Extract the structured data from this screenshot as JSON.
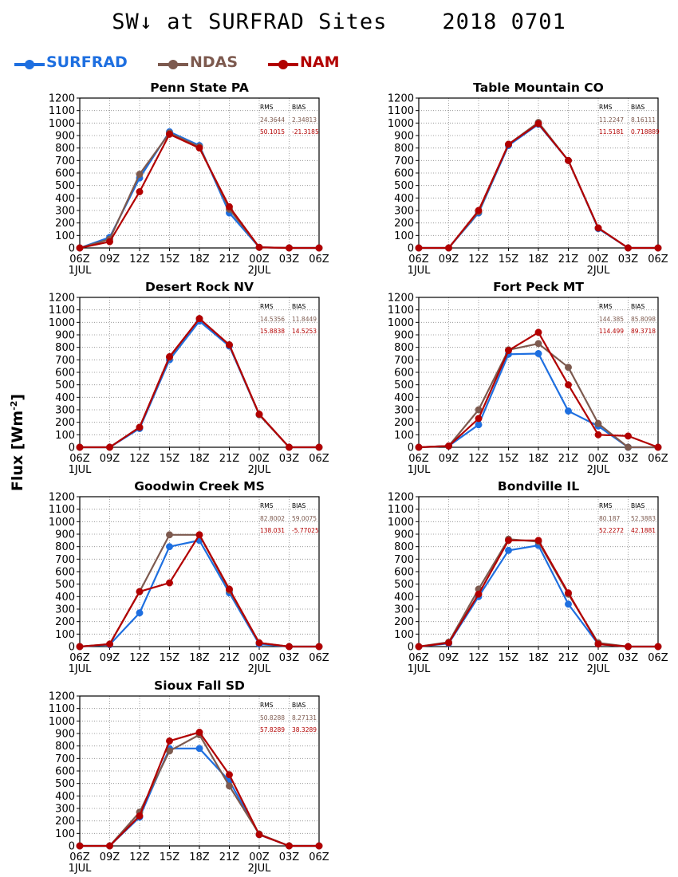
{
  "figure": {
    "title": "SW↓ at SURFRAD Sites    2018 0701",
    "ylabel": "Flux [Wm",
    "ylabel_sup": "-2",
    "ylabel_close": "]",
    "legend": [
      {
        "name": "SURFRAD",
        "color": "#1e6fe0"
      },
      {
        "name": "NDAS",
        "color": "#7d5a4f"
      },
      {
        "name": "NAM",
        "color": "#b20000"
      }
    ],
    "stats_header": {
      "rms": "RMS",
      "bias": "BIAS"
    }
  },
  "chart_data": [
    {
      "type": "line",
      "title": "Penn State PA",
      "x": [
        "06Z",
        "09Z",
        "12Z",
        "15Z",
        "18Z",
        "21Z",
        "00Z",
        "03Z",
        "06Z"
      ],
      "date_labels": {
        "0": "1JUL",
        "6": "2JUL"
      },
      "ylim": [
        0,
        1200
      ],
      "yticks": [
        0,
        100,
        200,
        300,
        400,
        500,
        600,
        700,
        800,
        900,
        1000,
        1100,
        1200
      ],
      "grid": true,
      "series": [
        {
          "name": "SURFRAD",
          "values": [
            0,
            85,
            560,
            930,
            820,
            280,
            5,
            0,
            0
          ]
        },
        {
          "name": "NDAS",
          "values": [
            0,
            70,
            590,
            920,
            810,
            310,
            5,
            0,
            0
          ]
        },
        {
          "name": "NAM",
          "values": [
            0,
            50,
            450,
            910,
            800,
            330,
            5,
            0,
            0
          ]
        }
      ],
      "stats": {
        "ndas": [
          "24.3644",
          "2.34813"
        ],
        "nam": [
          "50.1015",
          "-21.3185"
        ]
      }
    },
    {
      "type": "line",
      "title": "Table Mountain CO",
      "x": [
        "06Z",
        "09Z",
        "12Z",
        "15Z",
        "18Z",
        "21Z",
        "00Z",
        "03Z",
        "06Z"
      ],
      "date_labels": {
        "0": "1JUL",
        "6": "2JUL"
      },
      "ylim": [
        0,
        1200
      ],
      "yticks": [
        0,
        100,
        200,
        300,
        400,
        500,
        600,
        700,
        800,
        900,
        1000,
        1100,
        1200
      ],
      "grid": true,
      "series": [
        {
          "name": "SURFRAD",
          "values": [
            0,
            0,
            280,
            820,
            990,
            700,
            155,
            0,
            0
          ]
        },
        {
          "name": "NDAS",
          "values": [
            0,
            0,
            290,
            830,
            1005,
            700,
            160,
            0,
            0
          ]
        },
        {
          "name": "NAM",
          "values": [
            0,
            0,
            300,
            830,
            995,
            700,
            160,
            0,
            0
          ]
        }
      ],
      "stats": {
        "ndas": [
          "11.2247",
          "8.16111"
        ],
        "nam": [
          "11.5181",
          "0.718889"
        ]
      }
    },
    {
      "type": "line",
      "title": "Desert Rock NV",
      "x": [
        "06Z",
        "09Z",
        "12Z",
        "15Z",
        "18Z",
        "21Z",
        "00Z",
        "03Z",
        "06Z"
      ],
      "date_labels": {
        "0": "1JUL",
        "6": "2JUL"
      },
      "ylim": [
        0,
        1200
      ],
      "yticks": [
        0,
        100,
        200,
        300,
        400,
        500,
        600,
        700,
        800,
        900,
        1000,
        1100,
        1200
      ],
      "grid": true,
      "series": [
        {
          "name": "SURFRAD",
          "values": [
            0,
            0,
            150,
            700,
            1010,
            810,
            260,
            0,
            0
          ]
        },
        {
          "name": "NDAS",
          "values": [
            0,
            0,
            160,
            720,
            1030,
            820,
            260,
            0,
            0
          ]
        },
        {
          "name": "NAM",
          "values": [
            0,
            0,
            160,
            725,
            1030,
            820,
            265,
            0,
            0
          ]
        }
      ],
      "stats": {
        "ndas": [
          "14.5356",
          "11.8449"
        ],
        "nam": [
          "15.8838",
          "14.5253"
        ]
      }
    },
    {
      "type": "line",
      "title": "Fort Peck MT",
      "x": [
        "06Z",
        "09Z",
        "12Z",
        "15Z",
        "18Z",
        "21Z",
        "00Z",
        "03Z",
        "06Z"
      ],
      "date_labels": {
        "0": "1JUL",
        "6": "2JUL"
      },
      "ylim": [
        0,
        1200
      ],
      "yticks": [
        0,
        100,
        200,
        300,
        400,
        500,
        600,
        700,
        800,
        900,
        1000,
        1100,
        1200
      ],
      "grid": true,
      "series": [
        {
          "name": "SURFRAD",
          "values": [
            0,
            10,
            180,
            745,
            750,
            290,
            170,
            0,
            0
          ]
        },
        {
          "name": "NDAS",
          "values": [
            0,
            10,
            300,
            780,
            830,
            640,
            190,
            0,
            0
          ]
        },
        {
          "name": "NAM",
          "values": [
            0,
            10,
            230,
            775,
            920,
            500,
            100,
            90,
            0
          ]
        }
      ],
      "stats": {
        "ndas": [
          "144.385",
          "85.8098"
        ],
        "nam": [
          "114.499",
          "89.3718"
        ]
      }
    },
    {
      "type": "line",
      "title": "Goodwin Creek MS",
      "x": [
        "06Z",
        "09Z",
        "12Z",
        "15Z",
        "18Z",
        "21Z",
        "00Z",
        "03Z",
        "06Z"
      ],
      "date_labels": {
        "0": "1JUL",
        "6": "2JUL"
      },
      "ylim": [
        0,
        1200
      ],
      "yticks": [
        0,
        100,
        200,
        300,
        400,
        500,
        600,
        700,
        800,
        900,
        1000,
        1100,
        1200
      ],
      "grid": true,
      "series": [
        {
          "name": "SURFRAD",
          "values": [
            0,
            15,
            270,
            800,
            850,
            430,
            20,
            0,
            0
          ]
        },
        {
          "name": "NDAS",
          "values": [
            0,
            20,
            440,
            895,
            895,
            450,
            30,
            0,
            0
          ]
        },
        {
          "name": "NAM",
          "values": [
            0,
            20,
            440,
            510,
            895,
            460,
            30,
            0,
            0
          ]
        }
      ],
      "stats": {
        "ndas": [
          "82.8002",
          "59.0075"
        ],
        "nam": [
          "138.031",
          "-5.77025"
        ]
      }
    },
    {
      "type": "line",
      "title": "Bondville IL",
      "x": [
        "06Z",
        "09Z",
        "12Z",
        "15Z",
        "18Z",
        "21Z",
        "00Z",
        "03Z",
        "06Z"
      ],
      "date_labels": {
        "0": "1JUL",
        "6": "2JUL"
      },
      "ylim": [
        0,
        1200
      ],
      "yticks": [
        0,
        100,
        200,
        300,
        400,
        500,
        600,
        700,
        800,
        900,
        1000,
        1100,
        1200
      ],
      "grid": true,
      "series": [
        {
          "name": "SURFRAD",
          "values": [
            0,
            25,
            400,
            770,
            810,
            340,
            20,
            0,
            0
          ]
        },
        {
          "name": "NDAS",
          "values": [
            0,
            35,
            460,
            860,
            840,
            420,
            30,
            0,
            0
          ]
        },
        {
          "name": "NAM",
          "values": [
            0,
            30,
            420,
            850,
            850,
            430,
            20,
            0,
            0
          ]
        }
      ],
      "stats": {
        "ndas": [
          "80.187",
          "52.3883"
        ],
        "nam": [
          "52.2272",
          "42.1881"
        ]
      }
    },
    {
      "type": "line",
      "title": "Sioux Fall SD",
      "x": [
        "06Z",
        "09Z",
        "12Z",
        "15Z",
        "18Z",
        "21Z",
        "00Z",
        "03Z",
        "06Z"
      ],
      "date_labels": {
        "0": "1JUL",
        "6": "2JUL"
      },
      "ylim": [
        0,
        1200
      ],
      "yticks": [
        0,
        100,
        200,
        300,
        400,
        500,
        600,
        700,
        800,
        900,
        1000,
        1100,
        1200
      ],
      "grid": true,
      "series": [
        {
          "name": "SURFRAD",
          "values": [
            0,
            0,
            230,
            780,
            780,
            520,
            90,
            0,
            0
          ]
        },
        {
          "name": "NDAS",
          "values": [
            0,
            0,
            270,
            760,
            890,
            480,
            95,
            0,
            0
          ]
        },
        {
          "name": "NAM",
          "values": [
            0,
            0,
            240,
            840,
            910,
            570,
            90,
            0,
            0
          ]
        }
      ],
      "stats": {
        "ndas": [
          "50.8288",
          "8.27131"
        ],
        "nam": [
          "57.8289",
          "38.3289"
        ]
      }
    }
  ]
}
